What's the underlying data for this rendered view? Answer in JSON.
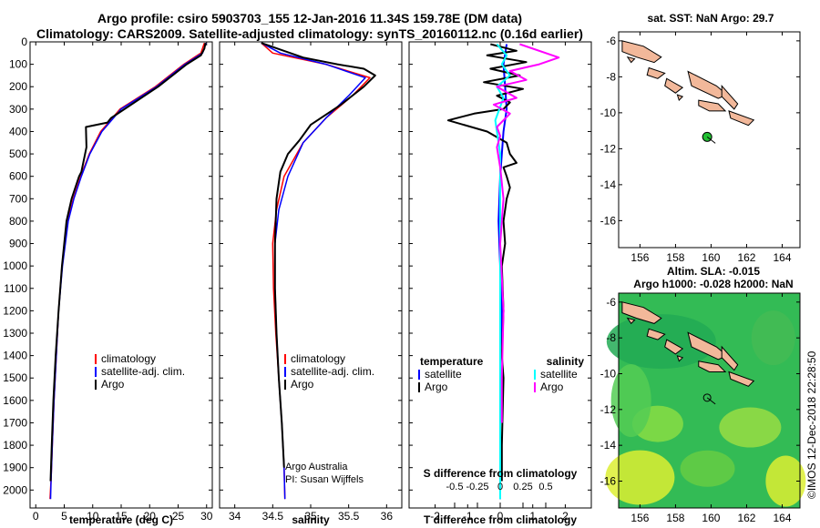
{
  "title_line1": "Argo profile: csiro 5903703_155 12-Jan-2016 11.34S 159.78E (DM data)",
  "title_line2": "Climatology: CARS2009. Satellite-adjusted climatology: synTS_20160112.nc (0.16d earlier)",
  "map1_title": "sat. SST: NaN Argo: 29.7",
  "map2_title_line1": "Altim. SLA: -0.015",
  "map2_title_line2": "Argo h1000: -0.028 h2000: NaN",
  "credit": "©IMOS 12-Dec-2018 22:28:50",
  "colors": {
    "climatology": "#ff0000",
    "satellite": "#0000ff",
    "argo": "#000000",
    "s_sat": "#00ffff",
    "s_argo": "#ff00ff",
    "land": "#f2b89a",
    "marker": "#22c033"
  },
  "chart_data": [
    {
      "type": "line",
      "xlabel": "temperature (deg C)",
      "ylabel": "",
      "xlim": [
        -1,
        31
      ],
      "ylim": [
        0,
        2080
      ],
      "xticks": [
        0,
        5,
        10,
        15,
        20,
        25,
        30
      ],
      "yticks": [
        0,
        100,
        200,
        300,
        400,
        500,
        600,
        700,
        800,
        900,
        1000,
        1100,
        1200,
        1300,
        1400,
        1500,
        1600,
        1700,
        1800,
        1900,
        2000
      ],
      "legend": [
        "climatology",
        "satellite-adj. clim.",
        "Argo"
      ],
      "series": [
        {
          "name": "climatology",
          "x": [
            29.6,
            29.0,
            26.0,
            21.0,
            14.8,
            11.4,
            9.4,
            7.9,
            6.6,
            5.6,
            4.6,
            4.0,
            3.6,
            3.2,
            2.9,
            2.7,
            2.5
          ],
          "y": [
            5,
            50,
            100,
            200,
            300,
            400,
            500,
            600,
            700,
            800,
            1000,
            1200,
            1400,
            1600,
            1800,
            1950,
            2040
          ]
        },
        {
          "name": "satellite-adj. clim.",
          "x": [
            29.9,
            29.3,
            26.2,
            21.2,
            15.0,
            11.6,
            9.5,
            8.0,
            6.7,
            5.7,
            4.7,
            4.0,
            3.6,
            3.2,
            2.9,
            2.7,
            2.6
          ],
          "y": [
            5,
            50,
            100,
            200,
            300,
            400,
            500,
            600,
            700,
            800,
            1000,
            1200,
            1400,
            1600,
            1800,
            1950,
            2040
          ]
        },
        {
          "name": "Argo",
          "x": [
            29.8,
            29.6,
            29.0,
            26.5,
            21.5,
            13.2,
            12.6,
            8.8,
            8.9,
            8.0,
            7.6,
            6.3,
            5.4,
            4.6,
            4.0,
            3.5,
            3.1,
            2.8,
            2.6
          ],
          "y": [
            5,
            30,
            60,
            100,
            200,
            340,
            360,
            380,
            470,
            580,
            600,
            700,
            800,
            1000,
            1200,
            1400,
            1600,
            1800,
            1960
          ]
        }
      ]
    },
    {
      "type": "line",
      "xlabel": "salinity",
      "xlim": [
        33.8,
        36.2
      ],
      "ylim": [
        0,
        2080
      ],
      "xticks": [
        34,
        34.5,
        35,
        35.5,
        36
      ],
      "legend": [
        "climatology",
        "satellite-adj. clim.",
        "Argo"
      ],
      "annotation": [
        "Argo Australia",
        "PI: Susan Wijffels"
      ],
      "series": [
        {
          "name": "climatology",
          "x": [
            34.35,
            34.5,
            35.2,
            35.78,
            35.55,
            35.2,
            34.9,
            34.65,
            34.55,
            34.5,
            34.51,
            34.54,
            34.58,
            34.62,
            34.65,
            34.66
          ],
          "y": [
            5,
            50,
            100,
            160,
            240,
            340,
            450,
            600,
            750,
            900,
            1100,
            1300,
            1500,
            1700,
            1900,
            2040
          ]
        },
        {
          "name": "satellite-adj. clim.",
          "x": [
            34.35,
            34.6,
            35.2,
            35.72,
            35.5,
            35.2,
            34.9,
            34.7,
            34.58,
            34.53,
            34.53,
            34.55,
            34.58,
            34.62,
            34.65,
            34.66
          ],
          "y": [
            5,
            50,
            100,
            160,
            240,
            340,
            450,
            600,
            750,
            900,
            1100,
            1300,
            1500,
            1700,
            1900,
            2040
          ]
        },
        {
          "name": "Argo",
          "x": [
            34.35,
            34.9,
            35.35,
            35.7,
            35.85,
            35.7,
            35.4,
            35.0,
            34.85,
            34.7,
            34.6,
            34.55,
            34.53,
            34.53,
            34.55,
            34.58,
            34.62,
            34.65
          ],
          "y": [
            5,
            70,
            100,
            120,
            150,
            200,
            280,
            370,
            440,
            500,
            580,
            700,
            900,
            1100,
            1300,
            1500,
            1700,
            1900
          ]
        }
      ]
    },
    {
      "type": "line",
      "xlabel": "T difference from climatology",
      "xlabel_top": "S difference from climatology",
      "xlim": [
        -2.8,
        2.8
      ],
      "ylim": [
        0,
        2080
      ],
      "xticks": [
        -2,
        -1,
        0,
        1,
        2
      ],
      "xticklabels_top": [
        "-0.5",
        "-0.25",
        "0",
        "0.25",
        "0.5"
      ],
      "legend_temperature": {
        "header": "temperature",
        "items": [
          "satellite",
          "Argo"
        ]
      },
      "legend_salinity": {
        "header": "salinity",
        "items": [
          "satellite",
          "Argo"
        ]
      },
      "series": [
        {
          "name": "satellite",
          "group": "temperature",
          "x": [
            0.2,
            0.1,
            0.15,
            0.2,
            0.1,
            0.05,
            0.0,
            -0.05,
            0.0,
            0.05,
            0.0,
            0.0,
            0.0
          ],
          "y": [
            10,
            100,
            200,
            300,
            400,
            500,
            600,
            800,
            1000,
            1200,
            1400,
            1700,
            2040
          ]
        },
        {
          "name": "Argo",
          "group": "temperature",
          "x": [
            -0.3,
            0.5,
            -0.4,
            0.8,
            -0.3,
            0.6,
            -0.5,
            0.7,
            -0.1,
            0.3,
            0.1,
            -0.8,
            -1.6,
            -0.4,
            0.2,
            0.3,
            0.5,
            0.1,
            0.2,
            0.3,
            0.2,
            0.1,
            0.15,
            0.05,
            0.1,
            0.05,
            0.1,
            0.05,
            0.05
          ],
          "y": [
            10,
            40,
            60,
            90,
            120,
            150,
            180,
            210,
            240,
            270,
            300,
            320,
            350,
            400,
            450,
            500,
            540,
            560,
            600,
            650,
            700,
            800,
            900,
            1000,
            1200,
            1400,
            1500,
            1800,
            1960
          ]
        },
        {
          "name": "satellite",
          "group": "salinity",
          "x": [
            -0.1,
            0.2,
            0.05,
            0.3,
            -0.1,
            0.1,
            -0.15,
            0.0,
            0.0,
            0.0,
            0.0
          ],
          "y": [
            10,
            60,
            100,
            150,
            200,
            250,
            350,
            500,
            800,
            1400,
            2040
          ]
        },
        {
          "name": "Argo",
          "group": "salinity",
          "x": [
            0.6,
            1.8,
            1.2,
            0.3,
            0.8,
            -0.1,
            0.5,
            -0.2,
            0.3,
            -0.1,
            0.0,
            -0.1,
            0.0,
            0.1,
            0.0,
            0.1,
            0.05,
            0.05
          ],
          "y": [
            10,
            70,
            100,
            130,
            170,
            200,
            250,
            280,
            320,
            380,
            420,
            470,
            560,
            700,
            900,
            1200,
            1500,
            1700
          ]
        }
      ]
    },
    {
      "type": "map",
      "title": "sat. SST: NaN Argo: 29.7",
      "xlim": [
        154.8,
        165
      ],
      "ylim": [
        -17.5,
        -5.5
      ],
      "xticks": [
        156,
        158,
        160,
        162,
        164
      ],
      "yticks": [
        -6,
        -8,
        -10,
        -12,
        -14,
        -16
      ],
      "argo_position": {
        "lon": 159.78,
        "lat": -11.34
      }
    },
    {
      "type": "heatmap",
      "title": "Altim. SLA: -0.015 / Argo h1000: -0.028 h2000: NaN",
      "xlim": [
        154.8,
        165
      ],
      "ylim": [
        -17.5,
        -5.5
      ],
      "xticks": [
        156,
        158,
        160,
        162,
        164
      ],
      "yticks": [
        -6,
        -8,
        -10,
        -12,
        -14,
        -16
      ],
      "argo_position": {
        "lon": 159.78,
        "lat": -11.34
      }
    }
  ]
}
